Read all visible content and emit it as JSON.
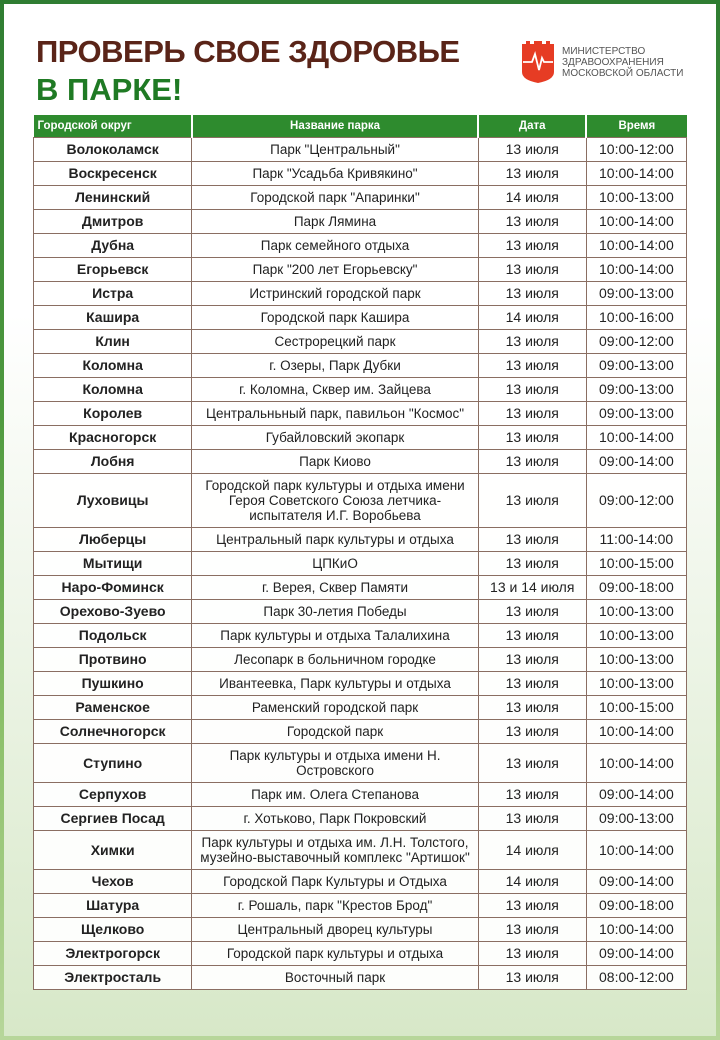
{
  "title_line1": "ПРОВЕРЬ СВОЕ ЗДОРОВЬЕ",
  "title_line2": "В ПАРКЕ!",
  "logo": {
    "line1": "МИНИСТЕРСТВО",
    "line2": "ЗДРАВООХРАНЕНИЯ",
    "line3": "МОСКОВСКОЙ ОБЛАСТИ",
    "icon": "shield-heartbeat-icon",
    "color": "#e63c24"
  },
  "colors": {
    "header_green": "#2e8b2e",
    "title_brown": "#5a2418",
    "title_green": "#1f7a24"
  },
  "table": {
    "headers": [
      "Городской округ",
      "Название парка",
      "Дата",
      "Время"
    ],
    "rows": [
      [
        "Волоколамск",
        "Парк \"Центральный\"",
        "13 июля",
        "10:00-12:00"
      ],
      [
        "Воскресенск",
        "Парк \"Усадьба Кривякино\"",
        "13 июля",
        "10:00-14:00"
      ],
      [
        "Ленинский",
        "Городской парк \"Апаринки\"",
        "14 июля",
        "10:00-13:00"
      ],
      [
        "Дмитров",
        "Парк Лямина",
        "13 июля",
        "10:00-14:00"
      ],
      [
        "Дубна",
        "Парк семейного отдыха",
        "13 июля",
        "10:00-14:00"
      ],
      [
        "Егорьевск",
        "Парк \"200 лет Егорьевску\"",
        "13 июля",
        "10:00-14:00"
      ],
      [
        "Истра",
        "Истринский городской парк",
        "13 июля",
        "09:00-13:00"
      ],
      [
        "Кашира",
        "Городской парк Кашира",
        "14 июля",
        "10:00-16:00"
      ],
      [
        "Клин",
        "Сестрорецкий парк",
        "13 июля",
        "09:00-12:00"
      ],
      [
        "Коломна",
        "г. Озеры, Парк Дубки",
        "13 июля",
        "09:00-13:00"
      ],
      [
        "Коломна",
        "г. Коломна, Сквер им. Зайцева",
        "13 июля",
        "09:00-13:00"
      ],
      [
        "Королев",
        "Центральньный парк, павильон \"Космос\"",
        "13 июля",
        "09:00-13:00"
      ],
      [
        "Красногорск",
        "Губайловский экопарк",
        "13 июля",
        "10:00-14:00"
      ],
      [
        "Лобня",
        "Парк Киово",
        "13 июля",
        "09:00-14:00"
      ],
      [
        "Луховицы",
        "Городской парк культуры и отдыха имени Героя Советского Союза летчика-испытателя И.Г. Воробьева",
        "13 июля",
        "09:00-12:00"
      ],
      [
        "Люберцы",
        "Центральный парк культуры и отдыха",
        "13 июля",
        "11:00-14:00"
      ],
      [
        "Мытищи",
        "ЦПКиО",
        "13 июля",
        "10:00-15:00"
      ],
      [
        "Наро-Фоминск",
        "г. Верея, Сквер Памяти",
        "13 и 14 июля",
        "09:00-18:00"
      ],
      [
        "Орехово-Зуево",
        "Парк 30-летия Победы",
        "13 июля",
        "10:00-13:00"
      ],
      [
        "Подольск",
        "Парк культуры и отдыха Талалихина",
        "13 июля",
        "10:00-13:00"
      ],
      [
        "Протвино",
        "Лесопарк в больничном городке",
        "13 июля",
        "10:00-13:00"
      ],
      [
        "Пушкино",
        "Ивантеевка, Парк культуры и отдыха",
        "13 июля",
        "10:00-13:00"
      ],
      [
        "Раменское",
        "Раменский городской парк",
        "13 июля",
        "10:00-15:00"
      ],
      [
        "Солнечногорск",
        "Городской парк",
        "13 июля",
        "10:00-14:00"
      ],
      [
        "Ступино",
        "Парк культуры и отдыха имени Н. Островского",
        "13 июля",
        "10:00-14:00"
      ],
      [
        "Серпухов",
        "Парк им. Олега Степанова",
        "13 июля",
        "09:00-14:00"
      ],
      [
        "Сергиев Посад",
        "г. Хотьково, Парк Покровский",
        "13 июля",
        "09:00-13:00"
      ],
      [
        "Химки",
        "Парк культуры и отдыха им. Л.Н. Толстого, музейно-выставочный комплекс \"Артишок\"",
        "14 июля",
        "10:00-14:00"
      ],
      [
        "Чехов",
        "Городской Парк Культуры и Отдыха",
        "14 июля",
        "09:00-14:00"
      ],
      [
        "Шатура",
        "г. Рошаль, парк \"Крестов Брод\"",
        "13 июля",
        "09:00-18:00"
      ],
      [
        "Щелково",
        "Центральный дворец культуры",
        "13 июля",
        "10:00-14:00"
      ],
      [
        "Электрогорск",
        "Городской парк культуры и отдыха",
        "13 июля",
        "09:00-14:00"
      ],
      [
        "Электросталь",
        "Восточный парк",
        "13 июля",
        "08:00-12:00"
      ]
    ]
  }
}
